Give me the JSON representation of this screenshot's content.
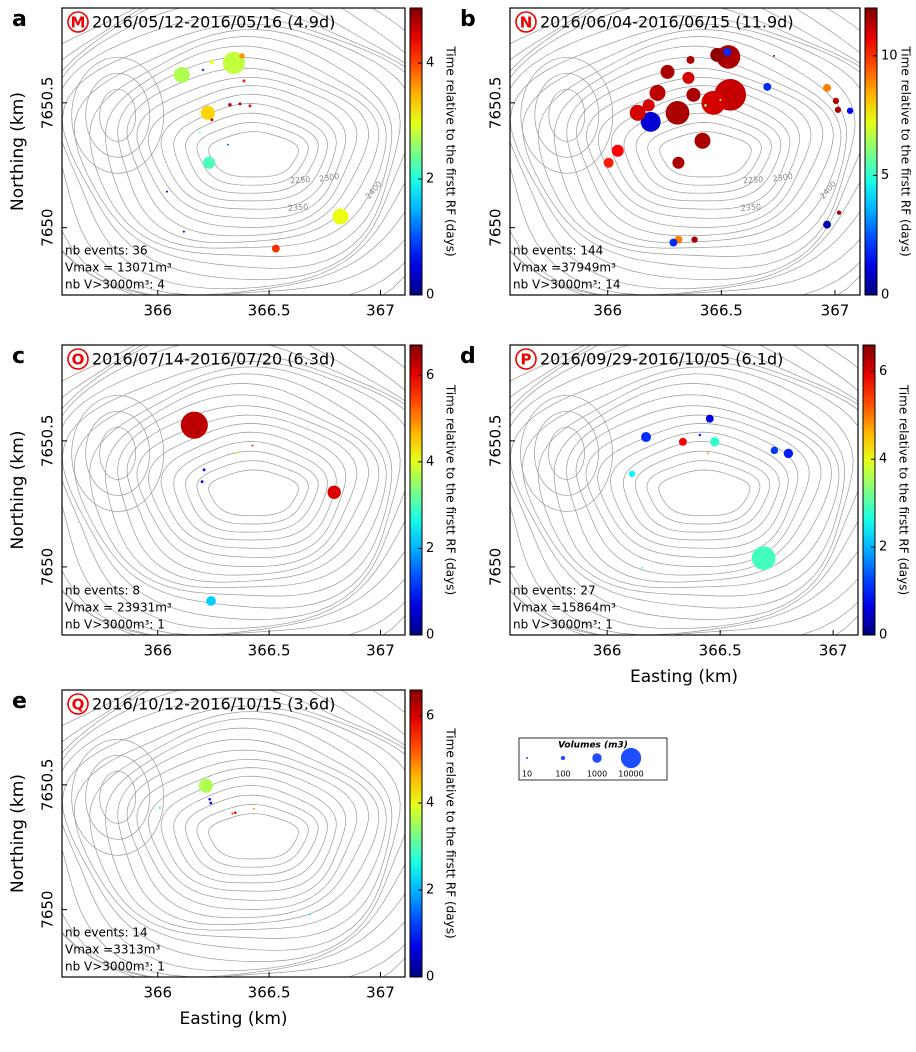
{
  "chart_data": [
    {
      "type": "scatter",
      "panel_label": "a",
      "period_label": "M",
      "title": "2016/05/12-2016/05/16 (4.9d)",
      "y_label": "Northing (km)",
      "colorbar_label": "Time relative to the firstt RF (days)",
      "stats": [
        "nb events: 36",
        "Vmax = 13071m³",
        "nb V>3000m³: 4"
      ],
      "contour_labels": [
        "2250",
        "2300",
        "2350",
        "2400"
      ],
      "xlim": [
        365.57,
        367.11
      ],
      "ylim": [
        7649.73,
        7650.88
      ],
      "xticks": [
        366,
        366.5,
        367
      ],
      "yticks": [
        7650,
        7650.5
      ],
      "colormap": "jet",
      "clim": [
        0,
        4.95
      ],
      "cticks": [
        0,
        2,
        4
      ],
      "x": [
        366.108,
        366.342,
        366.225,
        366.23,
        366.82,
        366.53,
        366.203,
        366.243,
        366.378,
        366.387,
        366.324,
        366.369,
        366.414,
        366.243,
        366.189,
        366.315,
        366.041,
        366.117
      ],
      "y": [
        7650.612,
        7650.66,
        7650.46,
        7650.26,
        7650.044,
        7649.916,
        7650.632,
        7650.664,
        7650.688,
        7650.588,
        7650.492,
        7650.496,
        7650.488,
        7650.432,
        7650.38,
        7650.332,
        7650.144,
        7649.984
      ],
      "sizes": [
        4930,
        13071,
        3300,
        2100,
        4900,
        600,
        20,
        80,
        200,
        30,
        50,
        30,
        30,
        30,
        10,
        10,
        10,
        10
      ],
      "colors": [
        2.7,
        2.8,
        3.3,
        2.2,
        3.0,
        4.1,
        1.0,
        3.0,
        3.6,
        4.2,
        4.7,
        4.8,
        4.3,
        4.6,
        2.4,
        1.2,
        0.5,
        0.2
      ]
    },
    {
      "type": "scatter",
      "panel_label": "b",
      "period_label": "N",
      "title": "2016/06/04-2016/06/15 (11.9d)",
      "colorbar_label": "Time relative to the firstt RF (days)",
      "stats": [
        "nb events: 144",
        "Vmax =37949m³",
        "nb V>3000m³: 14"
      ],
      "contour_labels": [
        "2250",
        "2300",
        "2350",
        "2400"
      ],
      "xlim": [
        365.57,
        367.11
      ],
      "ylim": [
        7649.73,
        7650.88
      ],
      "xticks": [
        366,
        366.5,
        367
      ],
      "yticks": [
        7650,
        7650.5
      ],
      "colormap": "jet",
      "clim": [
        0,
        12
      ],
      "cticks": [
        0,
        5,
        10
      ],
      "x": [
        366.531,
        366.539,
        366.465,
        366.307,
        366.189,
        366.132,
        366.044,
        366.004,
        366.311,
        366.417,
        366.263,
        366.219,
        366.355,
        366.482,
        366.526,
        366.702,
        366.965,
        367.004,
        367.013,
        367.066,
        366.965,
        367.018,
        366.311,
        366.382,
        366.289,
        366.732,
        366.496,
        366.43,
        366.364,
        366.18,
        366.377
      ],
      "y": [
        7650.684,
        7650.532,
        7650.5,
        7650.46,
        7650.424,
        7650.46,
        7650.308,
        7650.26,
        7650.26,
        7650.348,
        7650.624,
        7650.54,
        7650.6,
        7650.692,
        7650.704,
        7650.564,
        7650.56,
        7650.508,
        7650.472,
        7650.468,
        7650.012,
        7650.06,
        7649.952,
        7649.952,
        7649.94,
        7650.688,
        7650.512,
        7650.49,
        7650.672,
        7650.49,
        7650.532
      ],
      "sizes": [
        16000,
        37949,
        16700,
        16000,
        9600,
        4900,
        2100,
        1200,
        2100,
        4900,
        3300,
        4900,
        2100,
        3300,
        600,
        600,
        600,
        300,
        300,
        300,
        600,
        100,
        600,
        300,
        600,
        10,
        10,
        20,
        600,
        2100,
        3300
      ],
      "colors": [
        11.5,
        11.2,
        11.0,
        11.5,
        1.0,
        11.0,
        10.5,
        10.2,
        11.5,
        11.5,
        11.5,
        11.3,
        11.0,
        11.8,
        2.0,
        2.0,
        9.0,
        11.5,
        11.5,
        1.5,
        0.5,
        11.5,
        9.0,
        11.5,
        2.0,
        11.5,
        7.0,
        6.0,
        11.5,
        11.0,
        11.5
      ]
    },
    {
      "type": "scatter",
      "panel_label": "c",
      "period_label": "O",
      "title": "2016/07/14-2016/07/20 (6.3d)",
      "y_label": "Northing (km)",
      "colorbar_label": "Time relative to the firstt RF (days)",
      "stats": [
        "nb events: 8",
        "Vmax = 23931m³",
        "nb V>3000m³: 1"
      ],
      "xlim": [
        365.57,
        367.11
      ],
      "ylim": [
        7649.73,
        7650.88
      ],
      "xticks": [
        366,
        366.5,
        367
      ],
      "yticks": [
        7650,
        7650.5
      ],
      "colormap": "jet",
      "clim": [
        0,
        6.7
      ],
      "cticks": [
        0,
        2,
        4,
        6
      ],
      "x": [
        366.164,
        366.792,
        366.239,
        366.208,
        366.199,
        366.354,
        366.425
      ],
      "y": [
        7650.562,
        7650.296,
        7649.865,
        7650.385,
        7650.338,
        7650.45,
        7650.481
      ],
      "sizes": [
        23931,
        2900,
        1100,
        30,
        30,
        10,
        10
      ],
      "colors": [
        6.3,
        6.1,
        2.2,
        1.0,
        0.9,
        4.1,
        5.6
      ]
    },
    {
      "type": "scatter",
      "panel_label": "d",
      "period_label": "P",
      "title": "2016/09/29-2016/10/05 (6.1d)",
      "x_label": "Easting (km)",
      "colorbar_label": "Time relative to the firstt RF (days)",
      "stats": [
        "nb events: 27",
        "Vmax =15864m³",
        "nb V>3000m³: 1"
      ],
      "xlim": [
        365.57,
        367.11
      ],
      "ylim": [
        7649.73,
        7650.88
      ],
      "xticks": [
        366,
        366.5,
        367
      ],
      "yticks": [
        7650,
        7650.5
      ],
      "colormap": "jet",
      "clim": [
        0,
        6.6
      ],
      "cticks": [
        0,
        2,
        4,
        6
      ],
      "x": [
        366.692,
        366.172,
        366.454,
        366.335,
        366.476,
        366.74,
        366.802,
        366.11,
        366.41,
        366.445,
        366.154
      ],
      "y": [
        7650.035,
        7650.515,
        7650.588,
        7650.496,
        7650.496,
        7650.462,
        7650.45,
        7650.369,
        7650.523,
        7650.45,
        7649.996
      ],
      "sizes": [
        15864,
        1200,
        600,
        600,
        1000,
        500,
        1000,
        300,
        20,
        10,
        10
      ],
      "colors": [
        2.9,
        1.1,
        0.7,
        5.8,
        2.8,
        1.2,
        1.0,
        2.5,
        1.0,
        4.8,
        3.0
      ]
    },
    {
      "type": "scatter",
      "panel_label": "e",
      "period_label": "Q",
      "title": "2016/10/12-2016/10/15 (3.6d)",
      "x_label": "Easting (km)",
      "y_label": "Northing (km)",
      "colorbar_label": "Time relative to the firstt RF (days)",
      "stats": [
        "nb events: 14",
        "Vmax =3313m³",
        "nb V>3000m³: 1"
      ],
      "xlim": [
        365.57,
        367.11
      ],
      "ylim": [
        7649.73,
        7650.88
      ],
      "xticks": [
        366,
        366.5,
        367
      ],
      "yticks": [
        7650,
        7650.5
      ],
      "colormap": "jet",
      "clim": [
        0,
        6.6
      ],
      "cticks": [
        0,
        2,
        4,
        6
      ],
      "x": [
        366.216,
        366.238,
        366.233,
        366.009,
        366.348,
        366.432,
        366.683,
        366.335
      ],
      "y": [
        7650.496,
        7650.427,
        7650.442,
        7650.408,
        7650.388,
        7650.404,
        7649.981,
        7650.385
      ],
      "sizes": [
        3313,
        30,
        20,
        10,
        20,
        10,
        10,
        10
      ],
      "colors": [
        3.6,
        1.0,
        0.8,
        2.5,
        5.8,
        4.8,
        2.3,
        5.5
      ]
    }
  ],
  "size_legend": {
    "title": "Volumes (m3)",
    "values": [
      10,
      100,
      1000,
      10000
    ],
    "color": "#1e4cff"
  }
}
